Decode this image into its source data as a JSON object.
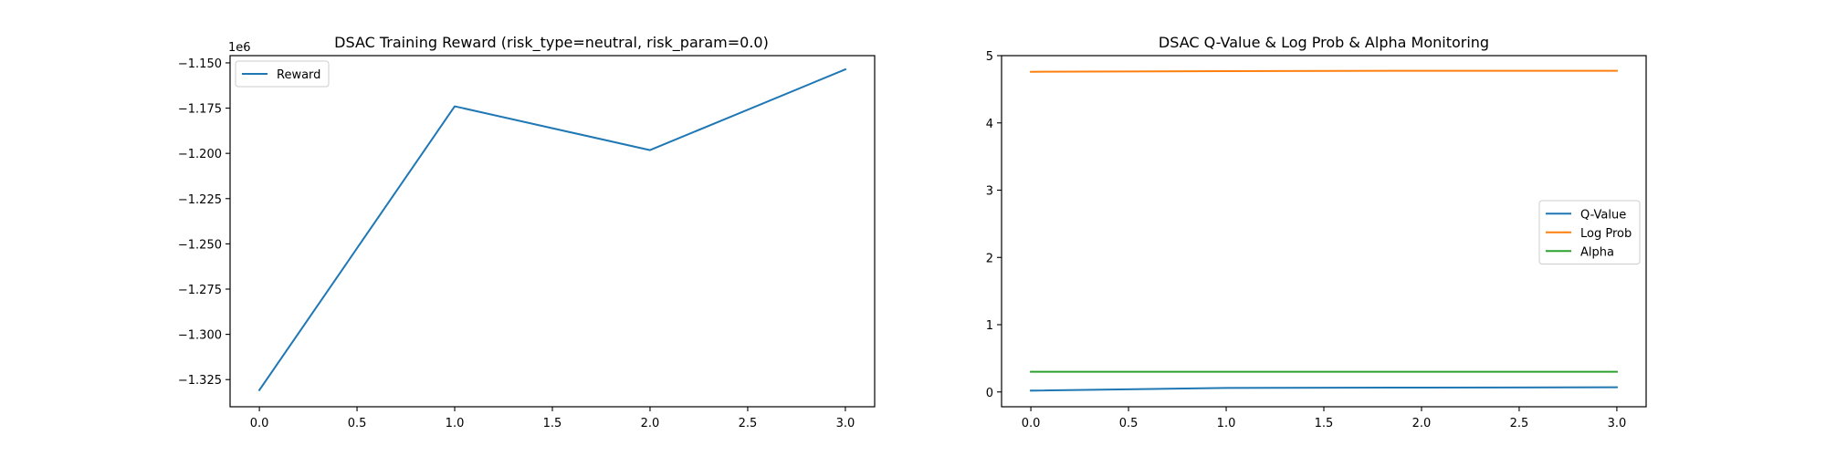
{
  "chart_data": [
    {
      "type": "line",
      "title": "DSAC Training Reward (risk_type=neutral, risk_param=0.0)",
      "xlabel": "",
      "ylabel": "",
      "x": [
        0,
        1,
        2,
        3
      ],
      "series": [
        {
          "name": "Reward",
          "values": [
            -1330800,
            -1174000,
            -1198200,
            -1153600
          ],
          "color": "#1f77b4"
        }
      ],
      "xlim": [
        -0.15,
        3.15
      ],
      "ylim": [
        -1340000,
        -1146000
      ],
      "x_ticks": [
        0.0,
        0.5,
        1.0,
        1.5,
        2.0,
        2.5,
        3.0
      ],
      "x_tick_labels": [
        "0.0",
        "0.5",
        "1.0",
        "1.5",
        "2.0",
        "2.5",
        "3.0"
      ],
      "y_ticks": [
        -1325000,
        -1300000,
        -1275000,
        -1250000,
        -1225000,
        -1200000,
        -1175000,
        -1150000
      ],
      "y_tick_labels": [
        "−1.325",
        "−1.300",
        "−1.275",
        "−1.250",
        "−1.225",
        "−1.200",
        "−1.175",
        "−1.150"
      ],
      "y_offset_label": "1e6",
      "legend_position": "upper left",
      "grid": false
    },
    {
      "type": "line",
      "title": "DSAC Q-Value & Log Prob & Alpha Monitoring",
      "xlabel": "",
      "ylabel": "",
      "x": [
        0,
        1,
        2,
        3
      ],
      "series": [
        {
          "name": "Q-Value",
          "values": [
            0.02,
            0.06,
            0.065,
            0.07
          ],
          "color": "#1f77b4"
        },
        {
          "name": "Log Prob",
          "values": [
            4.76,
            4.77,
            4.775,
            4.775
          ],
          "color": "#ff7f0e"
        },
        {
          "name": "Alpha",
          "values": [
            0.3,
            0.3,
            0.3,
            0.3
          ],
          "color": "#2ca02c"
        }
      ],
      "xlim": [
        -0.15,
        3.15
      ],
      "ylim": [
        -0.22,
        5.0
      ],
      "x_ticks": [
        0.0,
        0.5,
        1.0,
        1.5,
        2.0,
        2.5,
        3.0
      ],
      "x_tick_labels": [
        "0.0",
        "0.5",
        "1.0",
        "1.5",
        "2.0",
        "2.5",
        "3.0"
      ],
      "y_ticks": [
        0,
        1,
        2,
        3,
        4,
        5
      ],
      "y_tick_labels": [
        "0",
        "1",
        "2",
        "3",
        "4",
        "5"
      ],
      "legend_position": "center right",
      "grid": false
    }
  ]
}
